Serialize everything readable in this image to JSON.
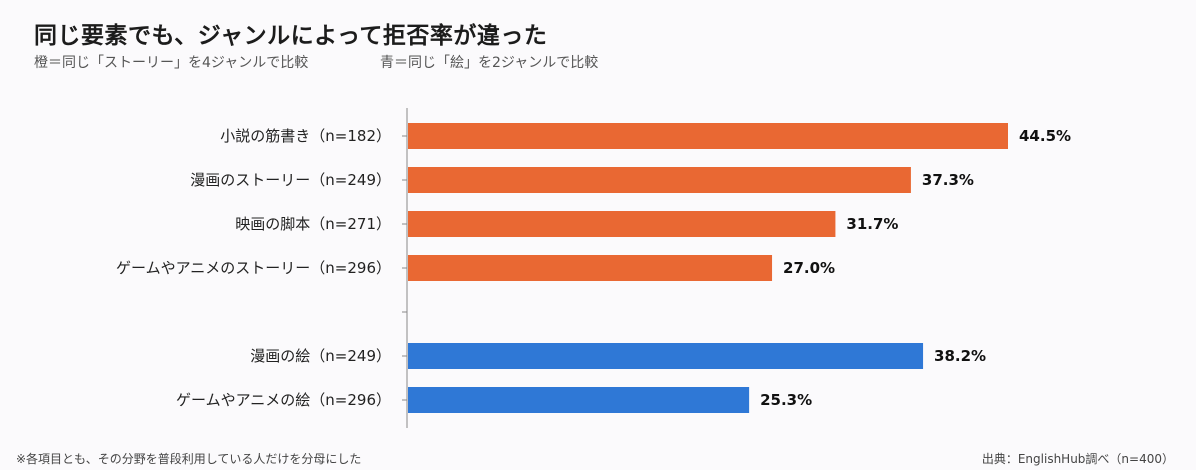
{
  "header": {
    "title": "同じ要素でも、ジャンルによって拒否率が違った",
    "subtitle_orange": "橙＝同じ「ストーリー」を4ジャンルで比較",
    "subtitle_blue": "青＝同じ「絵」を2ジャンルで比較"
  },
  "footer": {
    "note": "※各項目とも、その分野を普段利用している人だけを分母にした",
    "source": "出典：EnglishHub調べ（n=400）"
  },
  "colors": {
    "orange": "#e96833",
    "blue": "#2f78d6",
    "axis": "#888888"
  },
  "chart_data": {
    "type": "bar",
    "orientation": "horizontal",
    "xlim": [
      0,
      50
    ],
    "unit": "%",
    "grid": false,
    "categories": [
      "小説の筋書き（n=182）",
      "漫画のストーリー（n=249）",
      "映画の脚本（n=271）",
      "ゲームやアニメのストーリー（n=296）",
      "漫画の絵（n=249）",
      "ゲームやアニメの絵（n=296）"
    ],
    "values": [
      44.5,
      37.3,
      31.7,
      27.0,
      38.2,
      25.3
    ],
    "labels": [
      "44.5%",
      "37.3%",
      "31.7%",
      "27.0%",
      "38.2%",
      "25.3%"
    ],
    "groups": [
      "orange",
      "orange",
      "orange",
      "orange",
      "blue",
      "blue"
    ]
  }
}
